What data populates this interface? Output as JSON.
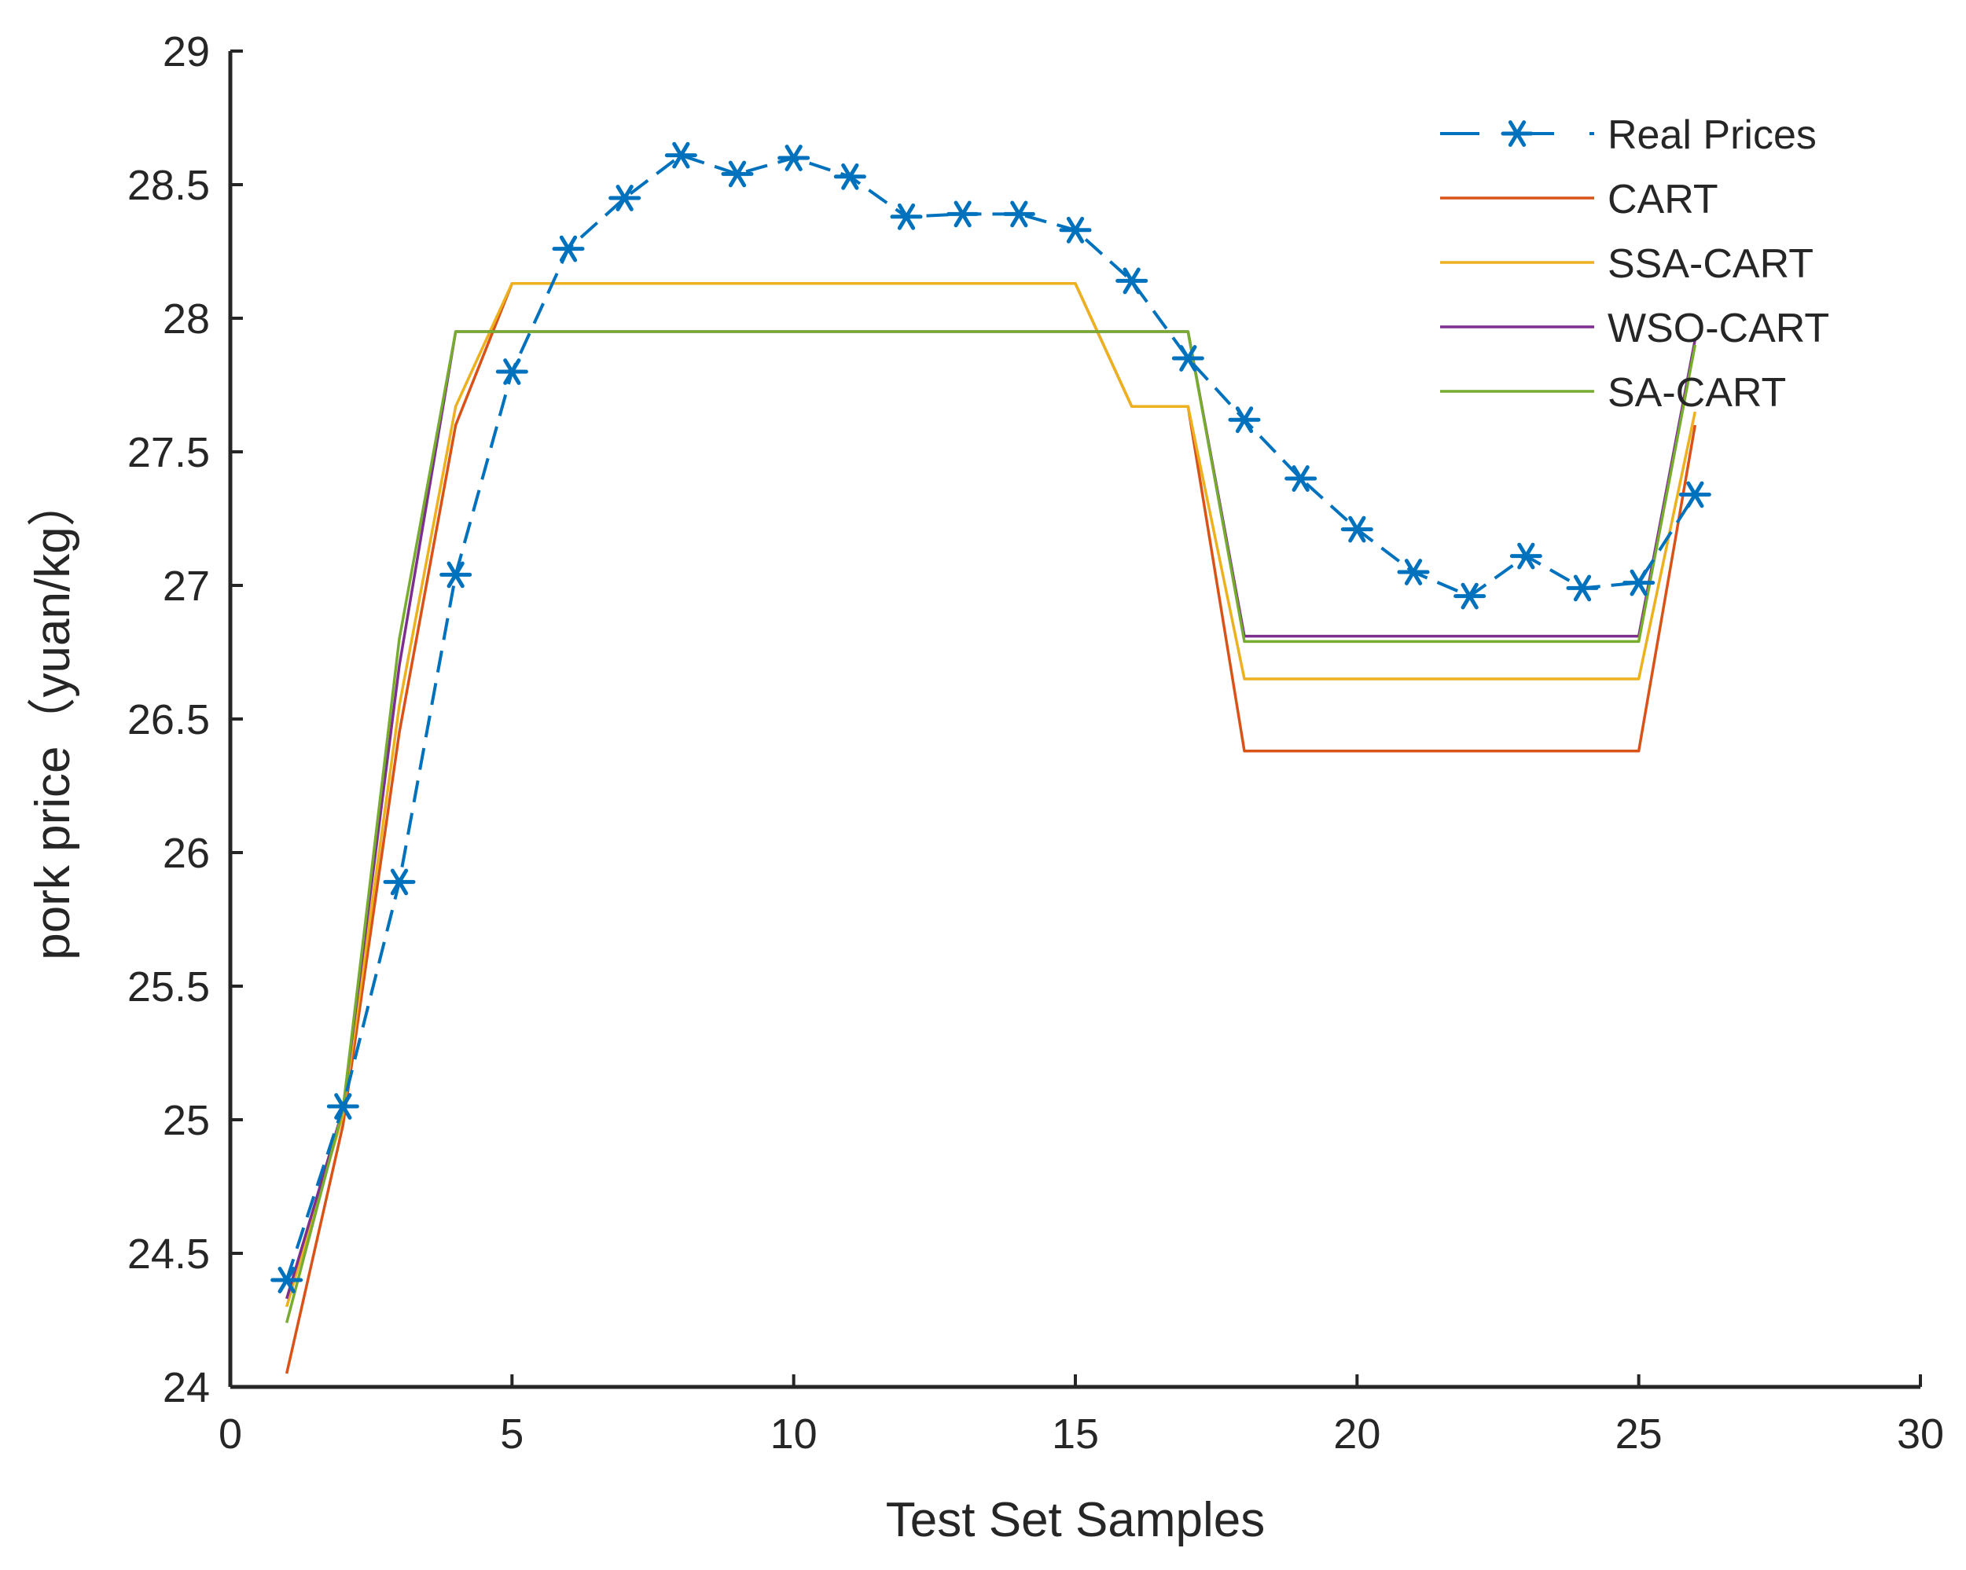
{
  "chart_data": {
    "type": "line",
    "title": "",
    "xlabel": "Test Set Samples",
    "ylabel": "pork price（yuan/kg）",
    "xlim": [
      0,
      30
    ],
    "ylim": [
      24,
      29
    ],
    "xticks": [
      0,
      5,
      10,
      15,
      20,
      25,
      30
    ],
    "yticks": [
      24,
      24.5,
      25,
      25.5,
      26,
      26.5,
      27,
      27.5,
      28,
      28.5,
      29
    ],
    "grid": false,
    "legend_position": "top-right",
    "x": [
      1,
      2,
      3,
      4,
      5,
      6,
      7,
      8,
      9,
      10,
      11,
      12,
      13,
      14,
      15,
      16,
      17,
      18,
      19,
      20,
      21,
      22,
      23,
      24,
      25,
      26
    ],
    "series": [
      {
        "name": "Real Prices",
        "color": "#0072bd",
        "style": "dashed-star",
        "values": [
          24.4,
          25.05,
          25.89,
          27.04,
          27.8,
          28.26,
          28.45,
          28.61,
          28.54,
          28.6,
          28.53,
          28.38,
          28.39,
          28.39,
          28.33,
          28.14,
          27.85,
          27.62,
          27.4,
          27.21,
          27.05,
          26.96,
          27.11,
          26.99,
          27.01,
          27.34
        ]
      },
      {
        "name": "CART",
        "color": "#d95319",
        "style": "solid",
        "values": [
          24.05,
          24.98,
          26.45,
          27.6,
          28.13,
          28.13,
          28.13,
          28.13,
          28.13,
          28.13,
          28.13,
          28.13,
          28.13,
          28.13,
          28.13,
          27.67,
          27.67,
          26.38,
          26.38,
          26.38,
          26.38,
          26.38,
          26.38,
          26.38,
          26.38,
          27.6
        ]
      },
      {
        "name": "SSA-CART",
        "color": "#edb120",
        "style": "solid",
        "values": [
          24.3,
          25.02,
          26.55,
          27.67,
          28.13,
          28.13,
          28.13,
          28.13,
          28.13,
          28.13,
          28.13,
          28.13,
          28.13,
          28.13,
          28.13,
          27.67,
          27.67,
          26.65,
          26.65,
          26.65,
          26.65,
          26.65,
          26.65,
          26.65,
          26.65,
          27.65
        ]
      },
      {
        "name": "WSO-CART",
        "color": "#7e2f8e",
        "style": "solid",
        "values": [
          24.33,
          25.04,
          26.7,
          27.95,
          27.95,
          27.95,
          27.95,
          27.95,
          27.95,
          27.95,
          27.95,
          27.95,
          27.95,
          27.95,
          27.95,
          27.95,
          27.95,
          26.81,
          26.81,
          26.81,
          26.81,
          26.81,
          26.81,
          26.81,
          26.81,
          27.92
        ]
      },
      {
        "name": "SA-CART",
        "color": "#77ac30",
        "style": "solid",
        "values": [
          24.24,
          25.04,
          26.8,
          27.95,
          27.95,
          27.95,
          27.95,
          27.95,
          27.95,
          27.95,
          27.95,
          27.95,
          27.95,
          27.95,
          27.95,
          27.95,
          27.95,
          26.79,
          26.79,
          26.79,
          26.79,
          26.79,
          26.79,
          26.79,
          26.79,
          27.9
        ]
      }
    ]
  }
}
